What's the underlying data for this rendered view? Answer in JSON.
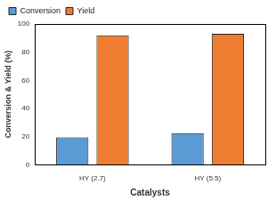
{
  "chart_data": {
    "type": "bar",
    "categories": [
      "HY (2.7)",
      "HY (5.5)"
    ],
    "series": [
      {
        "name": "Conversion",
        "color": "#5b9bd5",
        "values": [
          19.5,
          22.5
        ]
      },
      {
        "name": "Yield",
        "color": "#ed7d31",
        "values": [
          92,
          93
        ]
      }
    ],
    "x_label": "Catalysts",
    "y_label": "Conversion & Yield (%)",
    "ylim": [
      0,
      100
    ],
    "yticks": [
      0,
      20,
      40,
      60,
      80,
      100
    ],
    "grid": false,
    "legend": "upper left"
  }
}
